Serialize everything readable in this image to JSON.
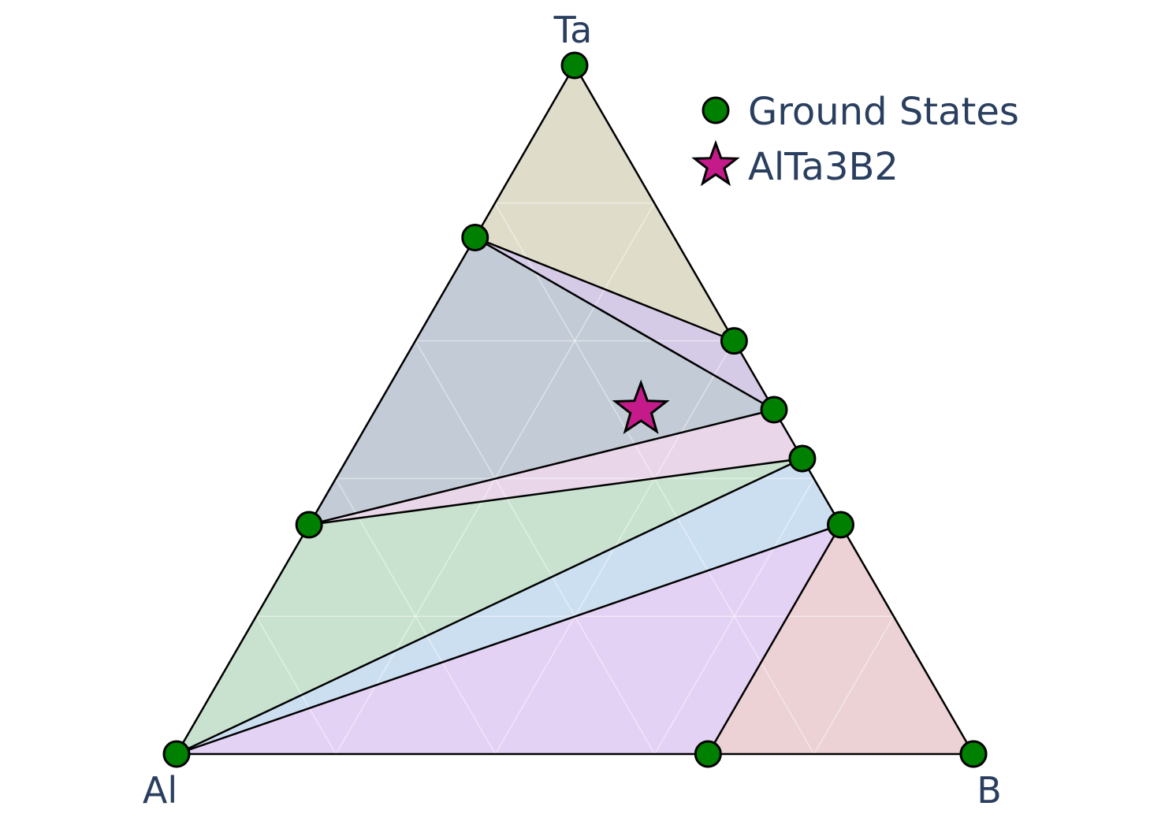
{
  "chart_data": {
    "type": "ternary",
    "vertices": {
      "top": "Ta",
      "left": "Al",
      "right": "B"
    },
    "grid": true,
    "legend_position": "top-right",
    "series": [
      {
        "name": "Ground States",
        "marker": "circle",
        "color": "#008000",
        "points": [
          {
            "Al": 1.0,
            "Ta": 0.0,
            "B": 0.0
          },
          {
            "Al": 0.0,
            "Ta": 1.0,
            "B": 0.0
          },
          {
            "Al": 0.0,
            "Ta": 0.0,
            "B": 1.0
          },
          {
            "Al": 0.667,
            "Ta": 0.333,
            "B": 0.0
          },
          {
            "Al": 0.25,
            "Ta": 0.75,
            "B": 0.0
          },
          {
            "Al": 0.0,
            "Ta": 0.6,
            "B": 0.4
          },
          {
            "Al": 0.0,
            "Ta": 0.5,
            "B": 0.5
          },
          {
            "Al": 0.0,
            "Ta": 0.429,
            "B": 0.571
          },
          {
            "Al": 0.0,
            "Ta": 0.333,
            "B": 0.667
          },
          {
            "Al": 0.0,
            "Ta": 0.0,
            "B": 1.0
          },
          {
            "Al": 0.333,
            "Ta": 0.0,
            "B": 0.667
          }
        ]
      },
      {
        "name": "AlTa3B2",
        "marker": "star",
        "color": "#c51b8a",
        "points": [
          {
            "Al": 0.167,
            "Ta": 0.5,
            "B": 0.333
          }
        ]
      }
    ],
    "facets": [
      {
        "vertices": [
          {
            "Al": 0.25,
            "Ta": 0.75,
            "B": 0
          },
          {
            "Al": 0,
            "Ta": 1,
            "B": 0
          },
          {
            "Al": 0,
            "Ta": 0.6,
            "B": 0.4
          }
        ],
        "color": "#b8b48a"
      },
      {
        "vertices": [
          {
            "Al": 0.25,
            "Ta": 0.75,
            "B": 0
          },
          {
            "Al": 0,
            "Ta": 0.6,
            "B": 0.4
          },
          {
            "Al": 0,
            "Ta": 0.5,
            "B": 0.5
          }
        ],
        "color": "#a58bc9"
      },
      {
        "vertices": [
          {
            "Al": 0.25,
            "Ta": 0.75,
            "B": 0
          },
          {
            "Al": 0,
            "Ta": 0.5,
            "B": 0.5
          },
          {
            "Al": 0.667,
            "Ta": 0.333,
            "B": 0
          }
        ],
        "color": "#7a8ca3"
      },
      {
        "vertices": [
          {
            "Al": 0.667,
            "Ta": 0.333,
            "B": 0
          },
          {
            "Al": 0,
            "Ta": 0.5,
            "B": 0.5
          },
          {
            "Al": 0,
            "Ta": 0.429,
            "B": 0.571
          }
        ],
        "color": "#cfa6cf"
      },
      {
        "vertices": [
          {
            "Al": 0.667,
            "Ta": 0.333,
            "B": 0
          },
          {
            "Al": 0,
            "Ta": 0.429,
            "B": 0.571
          },
          {
            "Al": 1,
            "Ta": 0,
            "B": 0
          }
        ],
        "color": "#86bf95"
      },
      {
        "vertices": [
          {
            "Al": 1,
            "Ta": 0,
            "B": 0
          },
          {
            "Al": 0,
            "Ta": 0.429,
            "B": 0.571
          },
          {
            "Al": 0,
            "Ta": 0.333,
            "B": 0.667
          }
        ],
        "color": "#8db8e0"
      },
      {
        "vertices": [
          {
            "Al": 1,
            "Ta": 0,
            "B": 0
          },
          {
            "Al": 0,
            "Ta": 0.333,
            "B": 0.667
          },
          {
            "Al": 0.333,
            "Ta": 0,
            "B": 0.667
          }
        ],
        "color": "#c39be8"
      },
      {
        "vertices": [
          {
            "Al": 0.333,
            "Ta": 0,
            "B": 0.667
          },
          {
            "Al": 0,
            "Ta": 0.333,
            "B": 0.667
          },
          {
            "Al": 0,
            "Ta": 0,
            "B": 1
          }
        ],
        "color": "#d49ba2"
      }
    ]
  }
}
